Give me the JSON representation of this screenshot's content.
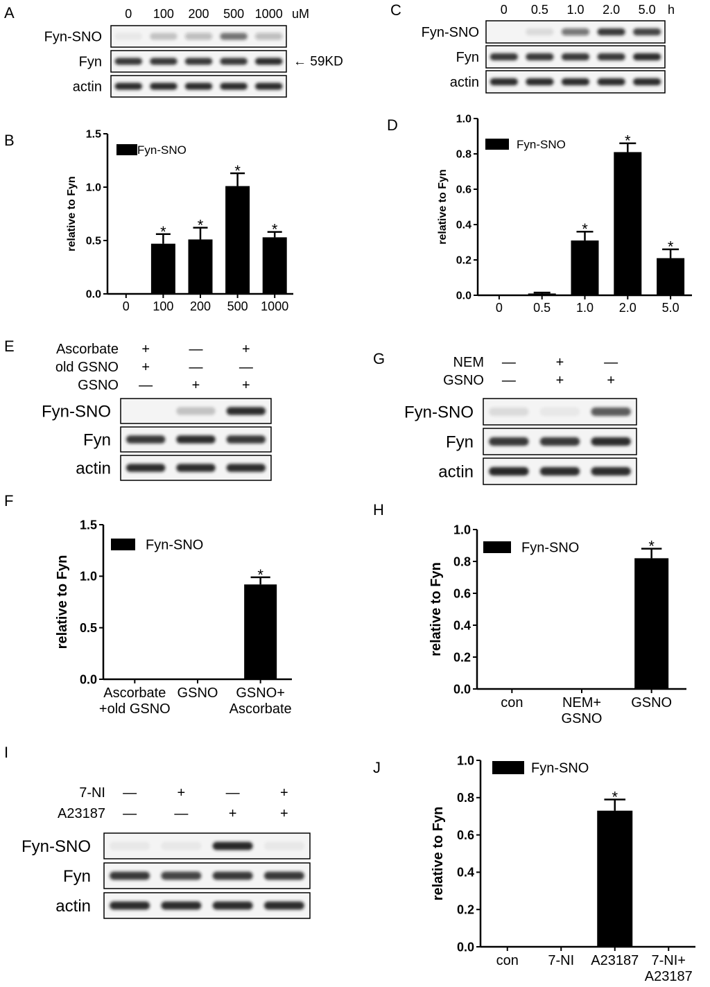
{
  "colors": {
    "bar": "#000000",
    "blot_bg": "#f4f4f4",
    "band": "#1a1a1a"
  },
  "panels": {
    "A": {
      "letter": "A",
      "conditions": [
        "0",
        "100",
        "200",
        "500",
        "1000"
      ],
      "unit": "uM",
      "rows": [
        "Fyn-SNO",
        "Fyn",
        "actin"
      ],
      "marker": "← 59KD",
      "band_intensity": {
        "Fyn-SNO": [
          0.05,
          0.2,
          0.25,
          0.6,
          0.25
        ],
        "Fyn": [
          0.85,
          0.85,
          0.85,
          0.85,
          0.9
        ],
        "actin": [
          0.9,
          0.9,
          0.9,
          0.9,
          0.9
        ]
      }
    },
    "C": {
      "letter": "C",
      "conditions": [
        "0",
        "0.5",
        "1.0",
        "2.0",
        "5.0"
      ],
      "unit": "h",
      "rows": [
        "Fyn-SNO",
        "Fyn",
        "actin"
      ],
      "band_intensity": {
        "Fyn-SNO": [
          0.0,
          0.1,
          0.55,
          0.85,
          0.8
        ],
        "Fyn": [
          0.85,
          0.85,
          0.85,
          0.85,
          0.9
        ],
        "actin": [
          0.9,
          0.9,
          0.9,
          0.9,
          0.9
        ]
      }
    },
    "E": {
      "letter": "E",
      "treatments": [
        {
          "label": "Ascorbate",
          "signs": [
            "+",
            "—",
            "+"
          ]
        },
        {
          "label": "old GSNO",
          "signs": [
            "+",
            "—",
            "—"
          ]
        },
        {
          "label": "GSNO",
          "signs": [
            "—",
            "+",
            "+"
          ]
        }
      ],
      "rows": [
        "Fyn-SNO",
        "Fyn",
        "actin"
      ],
      "band_intensity": {
        "Fyn-SNO": [
          0.0,
          0.2,
          0.9
        ],
        "Fyn": [
          0.85,
          0.9,
          0.85
        ],
        "actin": [
          0.9,
          0.9,
          0.9
        ]
      }
    },
    "G": {
      "letter": "G",
      "treatments": [
        {
          "label": "NEM",
          "signs": [
            "—",
            "+",
            "—"
          ]
        },
        {
          "label": "GSNO",
          "signs": [
            "—",
            "+",
            "+"
          ]
        }
      ],
      "rows": [
        "Fyn-SNO",
        "Fyn",
        "actin"
      ],
      "band_intensity": {
        "Fyn-SNO": [
          0.1,
          0.05,
          0.7
        ],
        "Fyn": [
          0.85,
          0.85,
          0.9
        ],
        "actin": [
          0.95,
          0.9,
          0.9
        ]
      }
    },
    "I": {
      "letter": "I",
      "treatments": [
        {
          "label": "7-NI",
          "signs": [
            "—",
            "+",
            "—",
            "+"
          ]
        },
        {
          "label": "A23187",
          "signs": [
            "—",
            "—",
            "+",
            "+"
          ]
        }
      ],
      "rows": [
        "Fyn-SNO",
        "Fyn",
        "actin"
      ],
      "band_intensity": {
        "Fyn-SNO": [
          0.05,
          0.05,
          0.95,
          0.05
        ],
        "Fyn": [
          0.85,
          0.8,
          0.85,
          0.85
        ],
        "actin": [
          0.9,
          0.9,
          0.9,
          0.9
        ]
      }
    }
  },
  "chart_data": [
    {
      "panel": "B",
      "type": "bar",
      "categories": [
        "0",
        "100",
        "200",
        "500",
        "1000"
      ],
      "series": [
        {
          "name": "Fyn-SNO",
          "values": [
            0.0,
            0.47,
            0.51,
            1.01,
            0.53
          ],
          "errors": [
            0.0,
            0.09,
            0.11,
            0.12,
            0.05
          ]
        }
      ],
      "significant": [
        false,
        true,
        true,
        true,
        true
      ],
      "ylabel": "relative to Fyn",
      "ylim": [
        0,
        1.5
      ],
      "yticks": [
        "0.0",
        "0.5",
        "1.0",
        "1.5"
      ],
      "legend": "top-left"
    },
    {
      "panel": "D",
      "type": "bar",
      "categories": [
        "0",
        "0.5",
        "1.0",
        "2.0",
        "5.0"
      ],
      "series": [
        {
          "name": "Fyn-SNO",
          "values": [
            0.0,
            0.01,
            0.31,
            0.81,
            0.21
          ],
          "errors": [
            0.0,
            0.005,
            0.05,
            0.05,
            0.05
          ]
        }
      ],
      "significant": [
        false,
        false,
        true,
        true,
        true
      ],
      "ylabel": "relative to Fyn",
      "ylim": [
        0,
        1.0
      ],
      "yticks": [
        "0.0",
        "0.2",
        "0.4",
        "0.6",
        "0.8",
        "1.0"
      ],
      "legend": "top-left"
    },
    {
      "panel": "F",
      "type": "bar",
      "categories": [
        [
          "Ascorbate",
          "+old GSNO"
        ],
        [
          "GSNO"
        ],
        [
          "GSNO+",
          "Ascorbate"
        ]
      ],
      "series": [
        {
          "name": "Fyn-SNO",
          "values": [
            0.0,
            0.0,
            0.92
          ],
          "errors": [
            0.0,
            0.0,
            0.07
          ]
        }
      ],
      "significant": [
        false,
        false,
        true
      ],
      "ylabel": "relative to Fyn",
      "ylim": [
        0,
        1.5
      ],
      "yticks": [
        "0.0",
        "0.5",
        "1.0",
        "1.5"
      ],
      "legend": "top-left"
    },
    {
      "panel": "H",
      "type": "bar",
      "categories": [
        [
          "con"
        ],
        [
          "NEM+",
          "GSNO"
        ],
        [
          "GSNO"
        ]
      ],
      "series": [
        {
          "name": "Fyn-SNO",
          "values": [
            0.0,
            0.0,
            0.82
          ],
          "errors": [
            0.0,
            0.0,
            0.06
          ]
        }
      ],
      "significant": [
        false,
        false,
        true
      ],
      "ylabel": "relative to Fyn",
      "ylim": [
        0,
        1.0
      ],
      "yticks": [
        "0.0",
        "0.2",
        "0.4",
        "0.6",
        "0.8",
        "1.0"
      ],
      "legend": "top-left"
    },
    {
      "panel": "J",
      "type": "bar",
      "categories": [
        [
          "con"
        ],
        [
          "7-NI"
        ],
        [
          "A23187"
        ],
        [
          "7-NI+",
          "A23187"
        ]
      ],
      "series": [
        {
          "name": "Fyn-SNO",
          "values": [
            0.0,
            0.0,
            0.73,
            0.0
          ],
          "errors": [
            0.0,
            0.0,
            0.06,
            0.0
          ]
        }
      ],
      "significant": [
        false,
        false,
        true,
        false
      ],
      "ylabel": "relative to Fyn",
      "ylim": [
        0,
        1.0
      ],
      "yticks": [
        "0.0",
        "0.2",
        "0.4",
        "0.6",
        "0.8",
        "1.0"
      ],
      "legend": "top-left"
    }
  ]
}
